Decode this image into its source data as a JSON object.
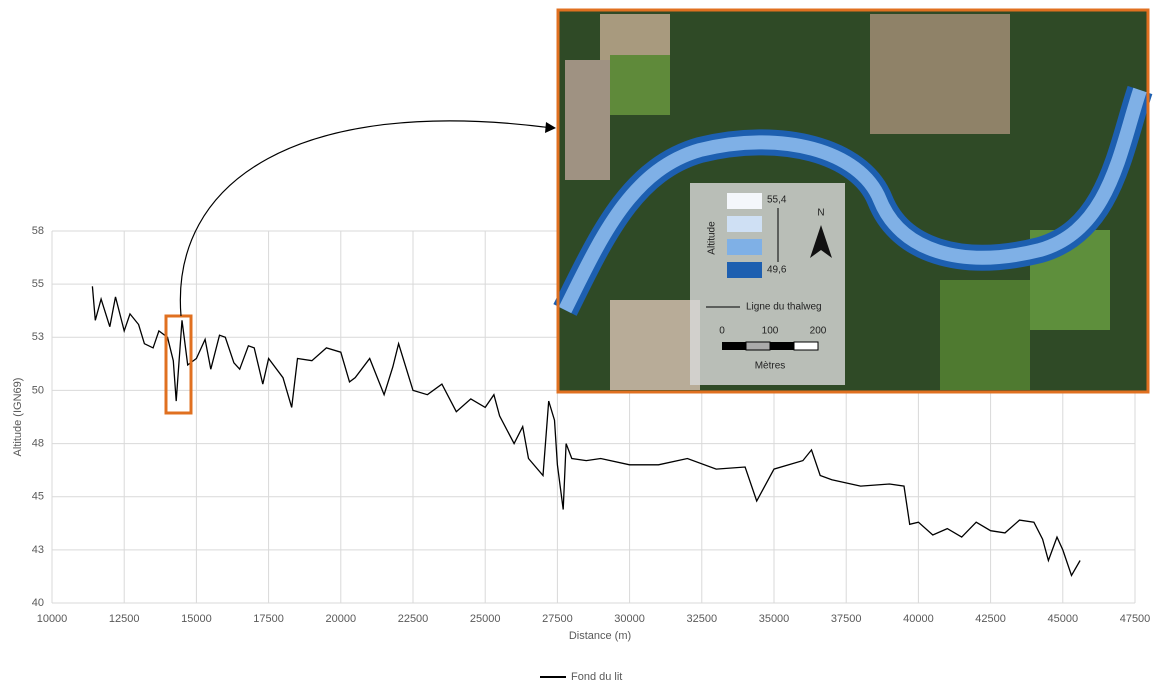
{
  "chart_data": {
    "type": "line",
    "x_label": "Distance (m)",
    "y_label": "Altitude (IGN69)",
    "xlim": [
      10000,
      47500
    ],
    "xticks": [
      10000,
      12500,
      15000,
      17500,
      20000,
      22500,
      25000,
      27500,
      30000,
      32500,
      35000,
      37500,
      40000,
      42500,
      45000,
      47500
    ],
    "ylim": [
      40,
      57.5
    ],
    "yticks": [
      40,
      {
        "value": 42.5,
        "label": "43"
      },
      45,
      {
        "value": 47.5,
        "label": "48"
      },
      50,
      {
        "value": 52.5,
        "label": "53"
      },
      55,
      {
        "value": 57.5,
        "label": "58"
      }
    ],
    "grid": true,
    "legend": "bottom",
    "series": [
      {
        "name": "Fond du lit",
        "color": "#000000",
        "x": [
          11400,
          11500,
          11700,
          12000,
          12200,
          12500,
          12700,
          13000,
          13200,
          13500,
          13700,
          14000,
          14200,
          14300,
          14500,
          14700,
          15000,
          15300,
          15500,
          15800,
          16000,
          16300,
          16500,
          16800,
          17000,
          17300,
          17500,
          18000,
          18300,
          18500,
          19000,
          19500,
          20000,
          20300,
          20500,
          21000,
          21500,
          21800,
          22000,
          22500,
          23000,
          23500,
          24000,
          24500,
          25000,
          25300,
          25500,
          26000,
          26300,
          26500,
          27000,
          27200,
          27400,
          27500,
          27700,
          27800,
          28000,
          28500,
          29000,
          30000,
          31000,
          32000,
          33000,
          34000,
          34400,
          35000,
          36000,
          36300,
          36600,
          37000,
          38000,
          39000,
          39500,
          39700,
          40000,
          40500,
          41000,
          41500,
          42000,
          42500,
          43000,
          43500,
          44000,
          44300,
          44500,
          44800,
          45000,
          45300,
          45600
        ],
        "values": [
          54.9,
          53.3,
          54.3,
          53.0,
          54.4,
          52.8,
          53.6,
          53.1,
          52.2,
          52.0,
          52.8,
          52.5,
          51.4,
          49.5,
          53.3,
          51.2,
          51.5,
          52.4,
          51.0,
          52.6,
          52.5,
          51.3,
          51.0,
          52.1,
          52.0,
          50.3,
          51.5,
          50.6,
          49.2,
          51.5,
          51.4,
          52.0,
          51.8,
          50.4,
          50.6,
          51.5,
          49.8,
          51.1,
          52.2,
          50.0,
          49.8,
          50.3,
          49.0,
          49.6,
          49.2,
          49.8,
          48.8,
          47.5,
          48.3,
          46.8,
          46.0,
          49.5,
          48.6,
          46.5,
          44.4,
          47.5,
          46.8,
          46.7,
          46.8,
          46.5,
          46.5,
          46.8,
          46.3,
          46.4,
          44.8,
          46.3,
          46.7,
          47.2,
          46.0,
          45.8,
          45.5,
          45.6,
          45.5,
          43.7,
          43.8,
          43.2,
          43.5,
          43.1,
          43.8,
          43.4,
          43.3,
          43.9,
          43.8,
          43.0,
          42.0,
          43.1,
          42.5,
          41.3,
          42.0
        ]
      }
    ]
  },
  "inset": {
    "legend_title": "Altitude",
    "max": "55,4",
    "min": "49,6",
    "north": "N",
    "line_label": "Ligne du thalweg",
    "scale": [
      "0",
      "100",
      "200"
    ],
    "scale_unit": "Mètres"
  }
}
